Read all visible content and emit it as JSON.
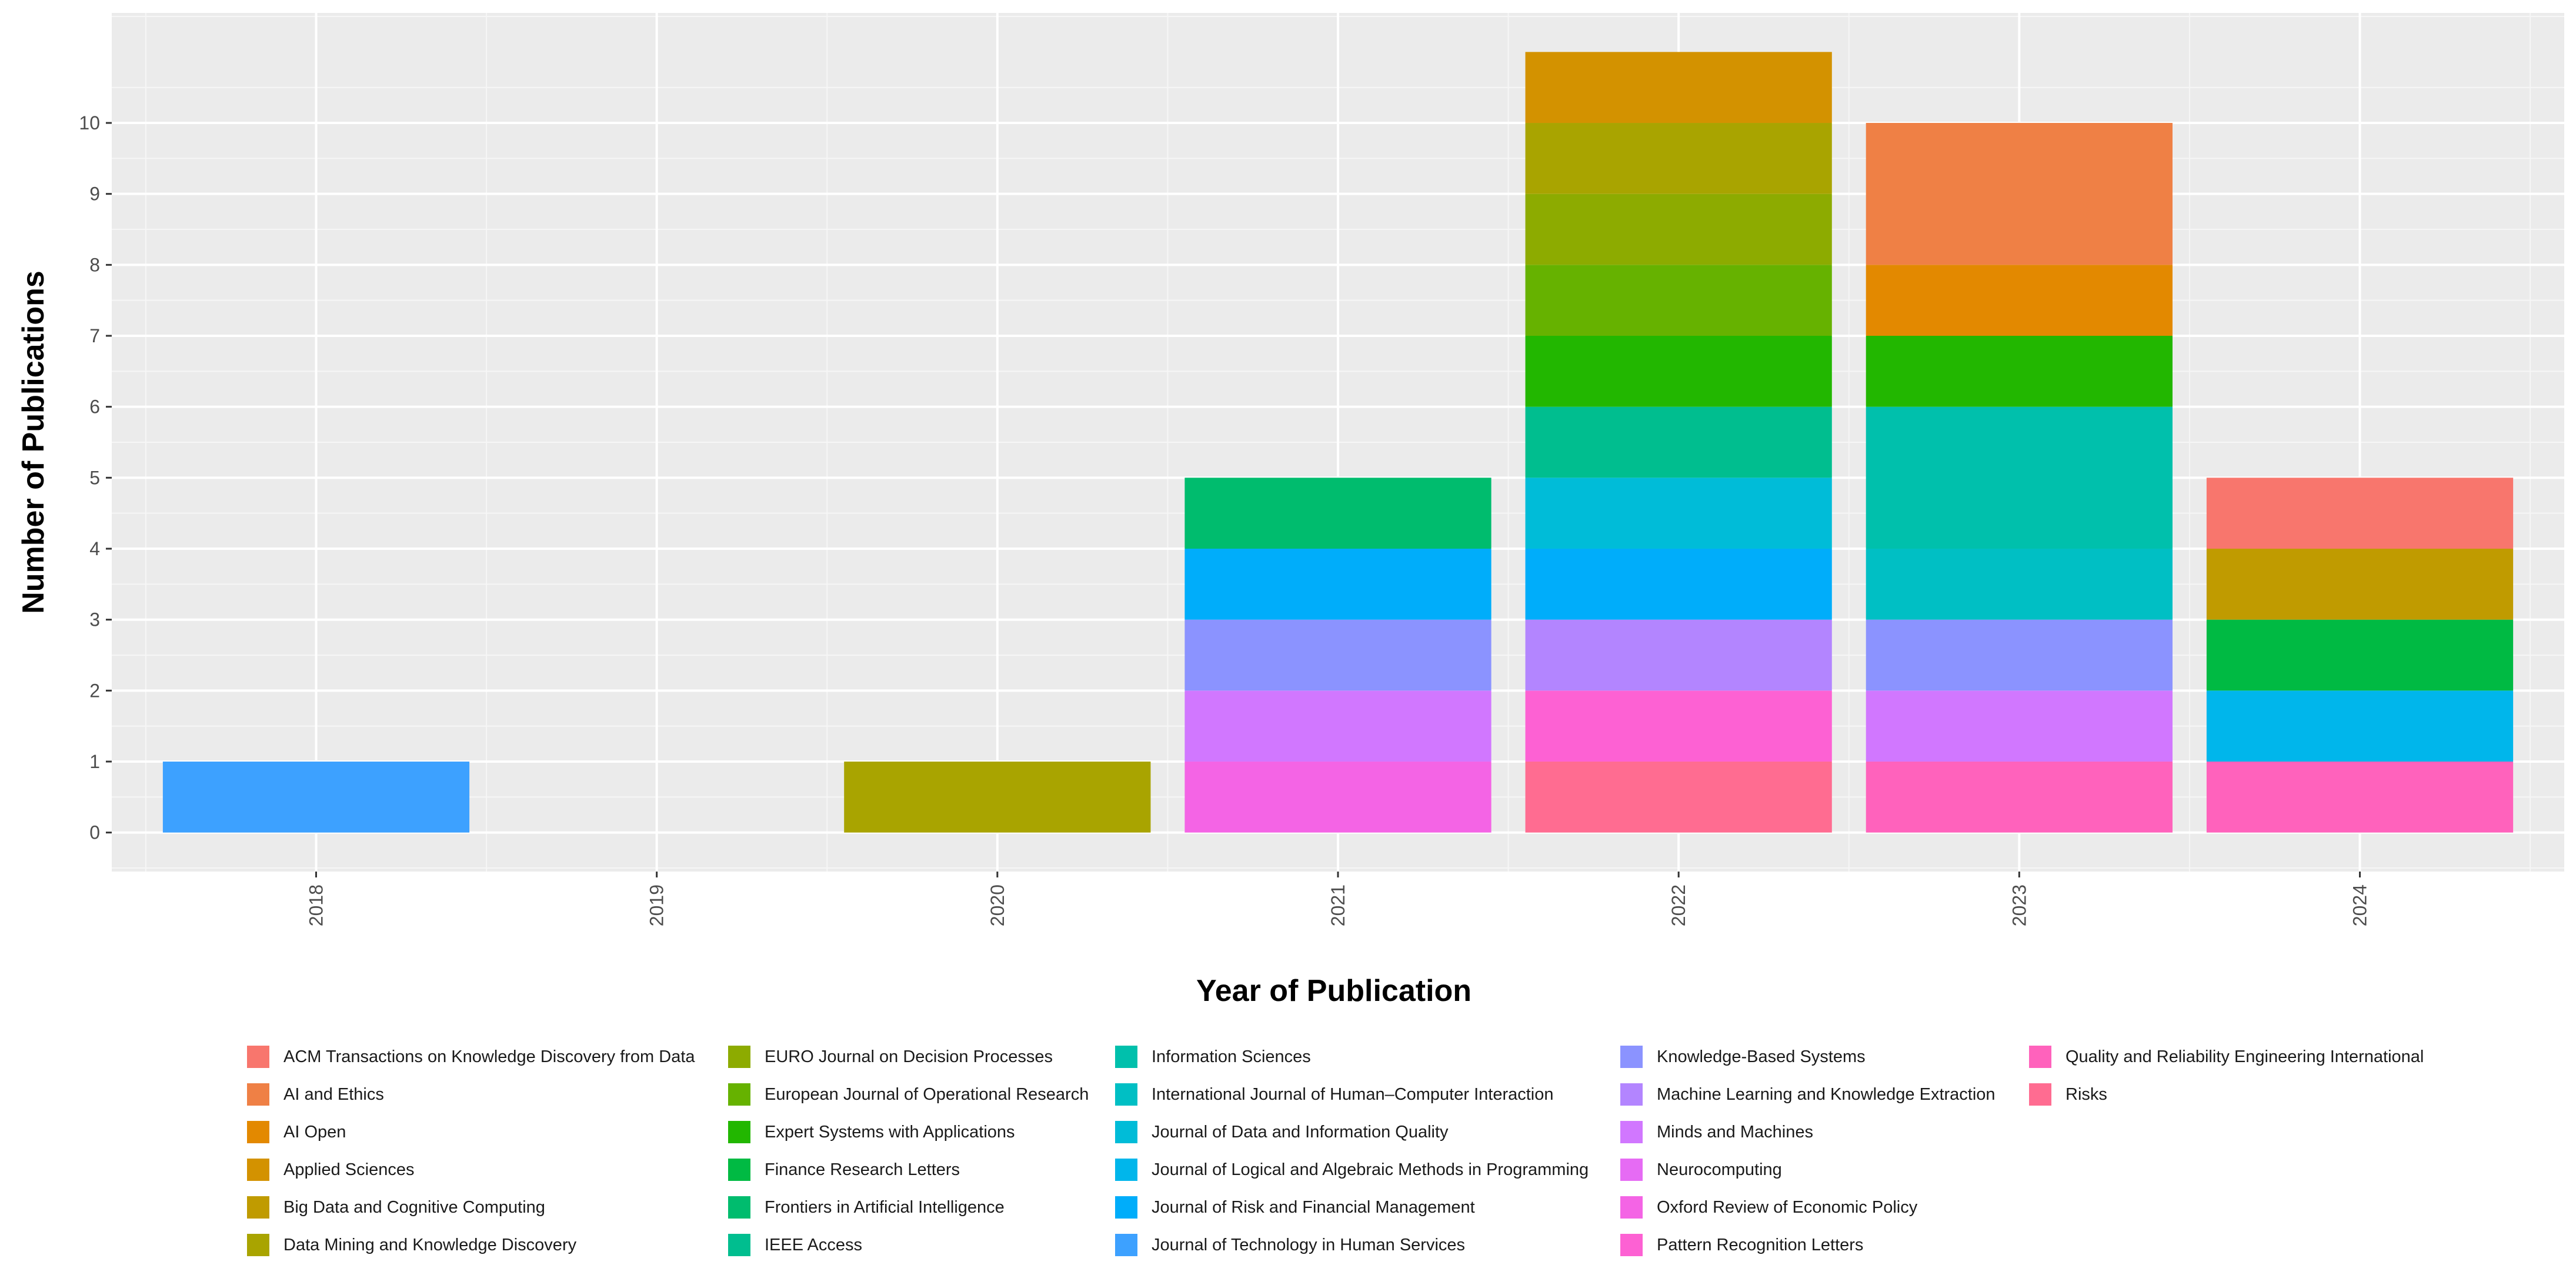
{
  "chart_data": {
    "type": "bar",
    "stacked": true,
    "title": "",
    "xlabel": "Year of Publication",
    "ylabel": "Number of Publications",
    "categories": [
      "2018",
      "2019",
      "2020",
      "2021",
      "2022",
      "2023",
      "2024"
    ],
    "y_ticks": [
      0,
      1,
      2,
      3,
      4,
      5,
      6,
      7,
      8,
      9,
      10
    ],
    "ylim": [
      -0.55,
      11.55
    ],
    "grid": true,
    "legend_position": "bottom",
    "series": [
      {
        "name": "ACM Transactions on Knowledge Discovery from Data",
        "color": "#F8766D",
        "values": [
          0,
          0,
          0,
          0,
          0,
          0,
          1
        ]
      },
      {
        "name": "AI and Ethics",
        "color": "#EF8045",
        "values": [
          0,
          0,
          0,
          0,
          0,
          2,
          0
        ]
      },
      {
        "name": "AI Open",
        "color": "#E38900",
        "values": [
          0,
          0,
          0,
          0,
          0,
          1,
          0
        ]
      },
      {
        "name": "Applied Sciences",
        "color": "#D39200",
        "values": [
          0,
          0,
          0,
          0,
          1,
          0,
          0
        ]
      },
      {
        "name": "Big Data and Cognitive Computing",
        "color": "#C09B00",
        "values": [
          0,
          0,
          0,
          0,
          0,
          0,
          1
        ]
      },
      {
        "name": "Data Mining and Knowledge Discovery",
        "color": "#A9A400",
        "values": [
          0,
          0,
          1,
          0,
          1,
          0,
          0
        ]
      },
      {
        "name": "EURO Journal on Decision Processes",
        "color": "#8DAB00",
        "values": [
          0,
          0,
          0,
          0,
          1,
          0,
          0
        ]
      },
      {
        "name": "European Journal of Operational Research",
        "color": "#66B200",
        "values": [
          0,
          0,
          0,
          0,
          1,
          0,
          0
        ]
      },
      {
        "name": "Expert Systems with Applications",
        "color": "#22B700",
        "values": [
          0,
          0,
          0,
          0,
          1,
          1,
          0
        ]
      },
      {
        "name": "Finance Research Letters",
        "color": "#00BA43",
        "values": [
          0,
          0,
          0,
          0,
          0,
          0,
          1
        ]
      },
      {
        "name": "Frontiers in Artificial Intelligence",
        "color": "#00BC6E",
        "values": [
          0,
          0,
          0,
          1,
          0,
          0,
          0
        ]
      },
      {
        "name": "IEEE Access",
        "color": "#00BE8F",
        "values": [
          0,
          0,
          0,
          0,
          1,
          0,
          0
        ]
      },
      {
        "name": "Information Sciences",
        "color": "#00C0AC",
        "values": [
          0,
          0,
          0,
          0,
          0,
          2,
          0
        ]
      },
      {
        "name": "International Journal of Human–Computer Interaction",
        "color": "#00BFC4",
        "values": [
          0,
          0,
          0,
          0,
          0,
          1,
          0
        ]
      },
      {
        "name": "Journal of Data and Information Quality",
        "color": "#00BCD8",
        "values": [
          0,
          0,
          0,
          0,
          1,
          0,
          0
        ]
      },
      {
        "name": "Journal of Logical and Algebraic Methods in Programming",
        "color": "#00B6EB",
        "values": [
          0,
          0,
          0,
          0,
          0,
          0,
          1
        ]
      },
      {
        "name": "Journal of Risk and Financial Management",
        "color": "#00ADFA",
        "values": [
          0,
          0,
          0,
          1,
          1,
          0,
          0
        ]
      },
      {
        "name": "Journal of Technology in Human Services",
        "color": "#3DA1FF",
        "values": [
          1,
          0,
          0,
          0,
          0,
          0,
          0
        ]
      },
      {
        "name": "Knowledge-Based Systems",
        "color": "#8B93FF",
        "values": [
          0,
          0,
          0,
          1,
          0,
          1,
          0
        ]
      },
      {
        "name": "Machine Learning and Knowledge Extraction",
        "color": "#B385FF",
        "values": [
          0,
          0,
          0,
          0,
          1,
          0,
          0
        ]
      },
      {
        "name": "Minds and Machines",
        "color": "#D177FF",
        "values": [
          0,
          0,
          0,
          1,
          0,
          1,
          0
        ]
      },
      {
        "name": "Neurocomputing",
        "color": "#E66BF4",
        "values": [
          0,
          0,
          0,
          0,
          0,
          0,
          0
        ]
      },
      {
        "name": "Oxford Review of Economic Policy",
        "color": "#F464E5",
        "values": [
          0,
          0,
          0,
          1,
          0,
          0,
          0
        ]
      },
      {
        "name": "Pattern Recognition Letters",
        "color": "#FD61D3",
        "values": [
          0,
          0,
          0,
          0,
          1,
          0,
          0
        ]
      },
      {
        "name": "Quality and Reliability Engineering International",
        "color": "#FF62BC",
        "values": [
          0,
          0,
          0,
          0,
          0,
          1,
          1
        ]
      },
      {
        "name": "Risks",
        "color": "#FF6C91",
        "values": [
          0,
          0,
          0,
          0,
          1,
          0,
          0
        ]
      }
    ]
  }
}
